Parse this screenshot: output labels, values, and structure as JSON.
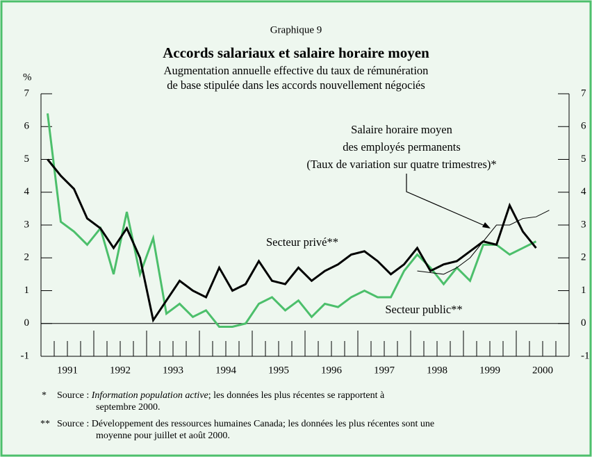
{
  "chart_data": {
    "type": "line",
    "header": "Graphique 9",
    "title": "Accords salariaux et salaire horaire moyen",
    "subtitle": [
      "Augmentation annuelle effective du taux de rémunération",
      "de base stipulée dans les accords nouvellement négociés"
    ],
    "y_label": "%",
    "ylim": [
      -1,
      7
    ],
    "yticks": [
      -1,
      0,
      1,
      2,
      3,
      4,
      5,
      6,
      7
    ],
    "xlim": [
      1991,
      2001
    ],
    "xticks": [
      1991,
      1992,
      1993,
      1994,
      1995,
      1996,
      1997,
      1998,
      1999,
      2000,
      2001
    ],
    "year_labels": [
      "1991",
      "1992",
      "1993",
      "1994",
      "1995",
      "1996",
      "1997",
      "1998",
      "1999",
      "2000"
    ],
    "series": [
      {
        "name": "Secteur privé**",
        "color": "#000000",
        "width": 3,
        "x": [
          1991.125,
          1991.375,
          1991.625,
          1991.875,
          1992.125,
          1992.375,
          1992.625,
          1992.875,
          1993.125,
          1993.375,
          1993.625,
          1993.875,
          1994.125,
          1994.375,
          1994.625,
          1994.875,
          1995.125,
          1995.375,
          1995.625,
          1995.875,
          1996.125,
          1996.375,
          1996.625,
          1996.875,
          1997.125,
          1997.375,
          1997.625,
          1997.875,
          1998.125,
          1998.375,
          1998.625,
          1998.875,
          1999.125,
          1999.375,
          1999.625,
          1999.875,
          2000.125,
          2000.375
        ],
        "values": [
          5.0,
          4.5,
          4.1,
          3.2,
          2.9,
          2.3,
          2.9,
          2.0,
          0.1,
          0.7,
          1.3,
          1.0,
          0.8,
          1.7,
          1.0,
          1.2,
          1.9,
          1.3,
          1.2,
          1.7,
          1.3,
          1.6,
          1.8,
          2.1,
          2.2,
          1.9,
          1.5,
          1.8,
          2.3,
          1.6,
          1.8,
          1.9,
          2.2,
          2.5,
          2.4,
          3.6,
          2.8,
          2.3
        ]
      },
      {
        "name": "Secteur public**",
        "color": "#4cbf6b",
        "width": 3,
        "x": [
          1991.125,
          1991.375,
          1991.625,
          1991.875,
          1992.125,
          1992.375,
          1992.625,
          1992.875,
          1993.125,
          1993.375,
          1993.625,
          1993.875,
          1994.125,
          1994.375,
          1994.625,
          1994.875,
          1995.125,
          1995.375,
          1995.625,
          1995.875,
          1996.125,
          1996.375,
          1996.625,
          1996.875,
          1997.125,
          1997.375,
          1997.625,
          1997.875,
          1998.125,
          1998.375,
          1998.625,
          1998.875,
          1999.125,
          1999.375,
          1999.625,
          1999.875,
          2000.125,
          2000.375
        ],
        "values": [
          6.4,
          3.1,
          2.8,
          2.4,
          2.9,
          1.5,
          3.4,
          1.5,
          2.6,
          0.3,
          0.6,
          0.2,
          0.4,
          -0.1,
          -0.1,
          0.0,
          0.6,
          0.8,
          0.4,
          0.7,
          0.2,
          0.6,
          0.5,
          0.8,
          1.0,
          0.8,
          0.8,
          1.6,
          2.1,
          1.7,
          1.2,
          1.7,
          1.3,
          2.4,
          2.4,
          2.1,
          2.3,
          2.5
        ]
      },
      {
        "name": [
          "Salaire horaire moyen",
          "des employés permanents",
          "(Taux de variation sur quatre trimestres)*"
        ],
        "color": "#000000",
        "width": 1,
        "x": [
          1998.125,
          1998.375,
          1998.625,
          1998.875,
          1999.125,
          1999.375,
          1999.625,
          1999.875,
          2000.125,
          2000.375,
          2000.625
        ],
        "values": [
          1.6,
          1.55,
          1.5,
          1.7,
          2.0,
          2.5,
          3.0,
          3.0,
          3.2,
          3.25,
          3.45
        ]
      }
    ],
    "footnotes": [
      {
        "marker": "*",
        "lines": [
          [
            "Source : ",
            "Information population active",
            "; les données les plus récentes se rapportent à"
          ],
          [
            "septembre 2000."
          ]
        ]
      },
      {
        "marker": "**",
        "lines": [
          [
            "Source : Développement des ressources humaines Canada; les données les plus récentes sont une"
          ],
          [
            "moyenne pour juillet et août 2000."
          ]
        ]
      }
    ]
  }
}
